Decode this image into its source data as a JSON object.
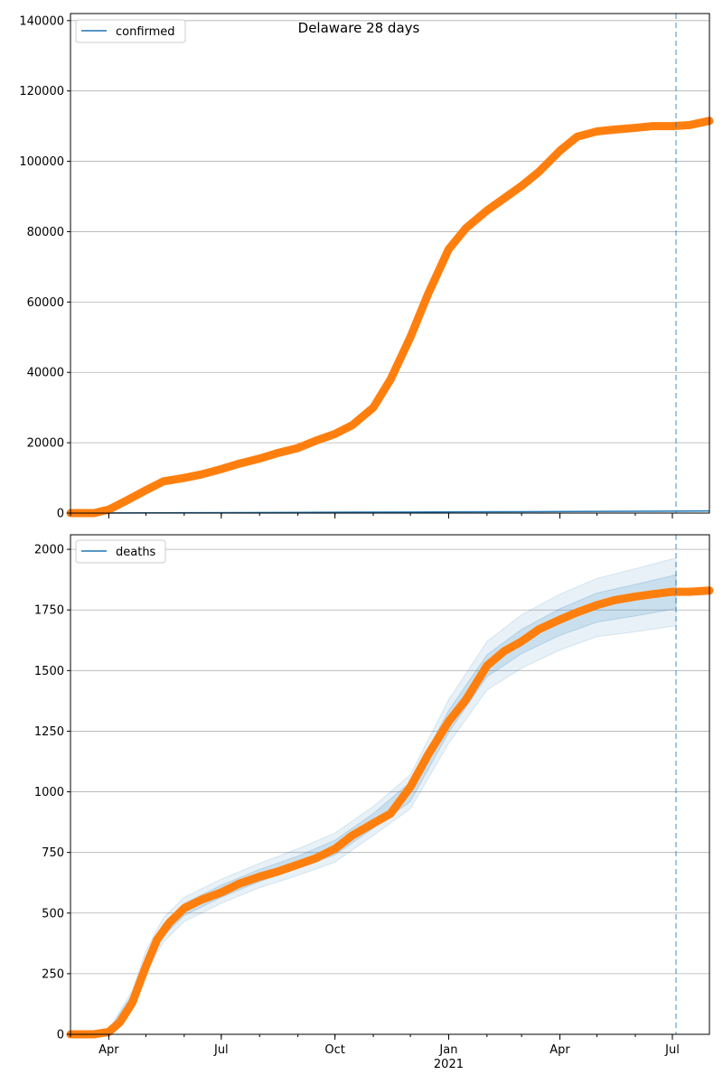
{
  "title": "Delaware 28 days",
  "colors": {
    "observed": "#ff7f0e",
    "model": "#1f77b4",
    "grid": "#b0b0b0",
    "band": "#1f77b4"
  },
  "x_axis": {
    "start": "2020-03-01",
    "end": "2021-07-31",
    "forecast_marker": "2021-07-04",
    "month_ticks": [
      "2020-03-01",
      "2020-04-01",
      "2020-05-01",
      "2020-06-01",
      "2020-07-01",
      "2020-08-01",
      "2020-09-01",
      "2020-10-01",
      "2020-11-01",
      "2020-12-01",
      "2021-01-01",
      "2021-02-01",
      "2021-03-01",
      "2021-04-01",
      "2021-05-01",
      "2021-06-01",
      "2021-07-01"
    ],
    "labels": [
      {
        "date": "2020-04-01",
        "text": "Apr"
      },
      {
        "date": "2020-07-01",
        "text": "Jul"
      },
      {
        "date": "2020-10-01",
        "text": "Oct"
      },
      {
        "date": "2021-01-01",
        "text": "Jan"
      },
      {
        "date": "2021-04-01",
        "text": "Apr"
      },
      {
        "date": "2021-07-01",
        "text": "Jul"
      }
    ],
    "year_label": {
      "date": "2021-01-01",
      "text": "2021"
    }
  },
  "chart_data": [
    {
      "type": "line",
      "legend": "confirmed",
      "legend_position": "top-left",
      "grid": true,
      "ylim": [
        0,
        142000
      ],
      "yticks": [
        0,
        20000,
        40000,
        60000,
        80000,
        100000,
        120000,
        140000
      ],
      "observed": {
        "x": [
          "2020-03-01",
          "2020-03-20",
          "2020-04-01",
          "2020-04-15",
          "2020-05-01",
          "2020-05-15",
          "2020-06-01",
          "2020-06-15",
          "2020-07-01",
          "2020-07-15",
          "2020-08-01",
          "2020-08-15",
          "2020-09-01",
          "2020-09-15",
          "2020-10-01",
          "2020-10-15",
          "2020-11-01",
          "2020-11-15",
          "2020-12-01",
          "2020-12-15",
          "2021-01-01",
          "2021-01-15",
          "2021-02-01",
          "2021-02-15",
          "2021-03-01",
          "2021-03-15",
          "2021-04-01",
          "2021-04-15",
          "2021-05-01",
          "2021-05-15",
          "2021-06-01",
          "2021-06-15",
          "2021-07-01",
          "2021-07-15",
          "2021-07-31"
        ],
        "y": [
          0,
          0,
          1000,
          3500,
          6500,
          9000,
          10000,
          11000,
          12500,
          14000,
          15500,
          17000,
          18500,
          20500,
          22500,
          25000,
          30000,
          38000,
          50000,
          62000,
          75000,
          81000,
          86000,
          89500,
          93000,
          97000,
          103000,
          107000,
          108500,
          109000,
          109500,
          110000,
          110000,
          110300,
          111500
        ]
      },
      "model": {
        "x": [
          "2020-03-01",
          "2020-06-01",
          "2020-09-01",
          "2020-12-01",
          "2021-03-01",
          "2021-06-01",
          "2021-07-31"
        ],
        "y": [
          0,
          100,
          200,
          300,
          400,
          500,
          600
        ]
      }
    },
    {
      "type": "line",
      "legend": "deaths",
      "legend_position": "top-left",
      "grid": true,
      "ylim": [
        0,
        2060
      ],
      "yticks": [
        0,
        250,
        500,
        750,
        1000,
        1250,
        1500,
        1750,
        2000
      ],
      "observed": {
        "x": [
          "2020-03-01",
          "2020-03-20",
          "2020-04-01",
          "2020-04-10",
          "2020-04-20",
          "2020-05-01",
          "2020-05-10",
          "2020-05-20",
          "2020-06-01",
          "2020-06-15",
          "2020-07-01",
          "2020-07-15",
          "2020-08-01",
          "2020-08-15",
          "2020-09-01",
          "2020-09-15",
          "2020-10-01",
          "2020-10-15",
          "2020-11-01",
          "2020-11-15",
          "2020-12-01",
          "2020-12-15",
          "2021-01-01",
          "2021-01-15",
          "2021-02-01",
          "2021-02-15",
          "2021-03-01",
          "2021-03-15",
          "2021-04-01",
          "2021-04-15",
          "2021-05-01",
          "2021-05-15",
          "2021-06-01",
          "2021-06-15",
          "2021-07-01",
          "2021-07-15",
          "2021-07-31"
        ],
        "y": [
          0,
          0,
          10,
          50,
          130,
          280,
          390,
          460,
          520,
          555,
          585,
          620,
          650,
          670,
          700,
          725,
          765,
          820,
          870,
          910,
          1020,
          1150,
          1290,
          1380,
          1520,
          1580,
          1620,
          1670,
          1710,
          1740,
          1770,
          1790,
          1805,
          1815,
          1825,
          1825,
          1830
        ]
      },
      "band": {
        "x": [
          "2020-04-01",
          "2020-04-20",
          "2020-05-01",
          "2020-05-15",
          "2020-06-01",
          "2020-07-01",
          "2020-08-01",
          "2020-09-01",
          "2020-10-01",
          "2020-11-01",
          "2020-12-01",
          "2021-01-01",
          "2021-02-01",
          "2021-03-01",
          "2021-04-01",
          "2021-05-01",
          "2021-06-01",
          "2021-07-04"
        ],
        "mid": [
          10,
          150,
          300,
          430,
          515,
          590,
          655,
          710,
          770,
          880,
          1000,
          1290,
          1520,
          1620,
          1700,
          1760,
          1790,
          1825
        ],
        "inner": [
          5,
          15,
          20,
          25,
          25,
          25,
          25,
          25,
          30,
          30,
          40,
          45,
          45,
          50,
          55,
          60,
          65,
          70
        ],
        "outer": [
          10,
          30,
          45,
          50,
          50,
          50,
          50,
          55,
          60,
          60,
          70,
          90,
          100,
          110,
          115,
          120,
          130,
          140
        ]
      }
    }
  ]
}
